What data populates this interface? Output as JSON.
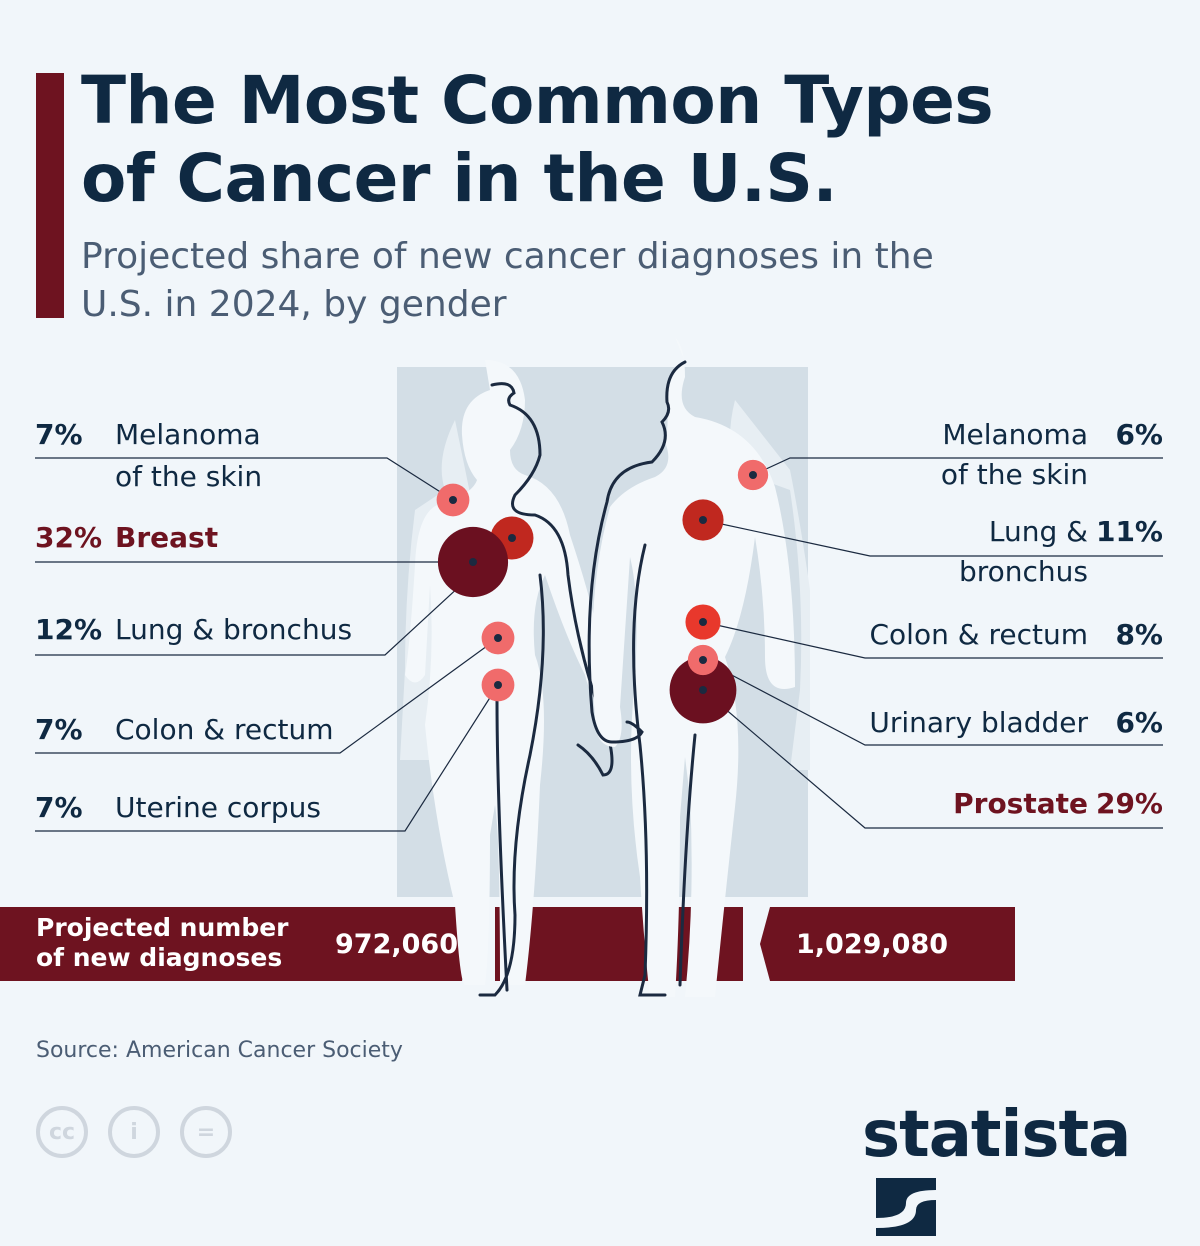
{
  "title": "The Most Common Types of Cancer in the U.S.",
  "subtitle": "Projected share of new cancer diagnoses in the U.S. in 2024, by gender",
  "chart_data": {
    "type": "bubble-infographic",
    "unit": "%",
    "series": [
      {
        "gender": "female",
        "categories": [
          "Melanoma of the skin",
          "Breast",
          "Lung & bronchus",
          "Colon & rectum",
          "Uterine corpus"
        ],
        "values": [
          7,
          32,
          12,
          7,
          7
        ],
        "highlight": "Breast"
      },
      {
        "gender": "male",
        "categories": [
          "Melanoma of the skin",
          "Lung & bronchus",
          "Colon & rectum",
          "Urinary bladder",
          "Prostate"
        ],
        "values": [
          6,
          11,
          8,
          6,
          29
        ],
        "highlight": "Prostate"
      }
    ],
    "totals": {
      "label": "Projected number of new diagnoses",
      "female": "972,060",
      "male": "1,029,080"
    }
  },
  "labels": {
    "female": [
      {
        "pct": "7%",
        "name": "Melanoma",
        "name2": "of the skin"
      },
      {
        "pct": "32%",
        "name": "Breast"
      },
      {
        "pct": "12%",
        "name": "Lung & bronchus"
      },
      {
        "pct": "7%",
        "name": "Colon & rectum"
      },
      {
        "pct": "7%",
        "name": "Uterine corpus"
      }
    ],
    "male": [
      {
        "pct": "6%",
        "name": "Melanoma",
        "name2": "of the skin"
      },
      {
        "pct": "11%",
        "name": "Lung &",
        "name2": "bronchus"
      },
      {
        "pct": "8%",
        "name": "Colon & rectum"
      },
      {
        "pct": "6%",
        "name": "Urinary bladder"
      },
      {
        "pct": "29%",
        "name": "Prostate"
      }
    ]
  },
  "bar": {
    "label_line1": "Projected number",
    "label_line2": "of new diagnoses",
    "female": "972,060",
    "male": "1,029,080"
  },
  "source": "Source: American Cancer Society",
  "license_icons": [
    "cc",
    "by",
    "nd"
  ],
  "logo": "statista",
  "colors": {
    "dark_red": "#6e1320",
    "title": "#0f2942",
    "bubble_small": "#f06b6b",
    "bubble_mid": "#c0281f",
    "bubble_red": "#e8382c",
    "bubble_large": "#6b1020"
  }
}
